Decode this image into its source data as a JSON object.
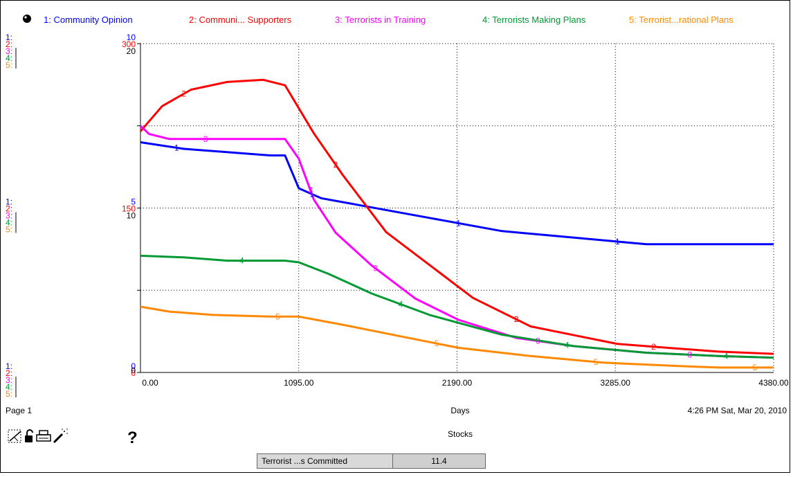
{
  "chart_data": {
    "type": "line",
    "xlabel": "Days",
    "title": "Stocks",
    "page_label": "Page 1",
    "timestamp": "4:26 PM   Sat, Mar 20, 2010",
    "x_ticks": [
      "0.00",
      "1095.00",
      "2190.00",
      "3285.00",
      "4380.00"
    ],
    "xlim": [
      0,
      4380
    ],
    "grid": "dotted",
    "legend_position": "top",
    "axes": [
      {
        "series_index": "1",
        "color": "#0000ff",
        "ticks": [
          "10",
          "5",
          "0"
        ],
        "ylim": [
          0,
          10
        ]
      },
      {
        "series_index": "2",
        "color": "#ff0000",
        "ticks": [
          "300",
          "150",
          "0"
        ],
        "ylim": [
          0,
          300
        ]
      },
      {
        "series_index": "3",
        "color": "#ff00ff",
        "ticks": [
          "",
          "",
          ""
        ]
      },
      {
        "series_index": "4",
        "color": "#009933",
        "ticks": [
          "",
          "",
          ""
        ]
      },
      {
        "series_index": "5",
        "color": "#ff8800",
        "ticks": [
          "",
          "",
          ""
        ]
      }
    ],
    "shared_left_axis": {
      "ticks": [
        "20",
        "10",
        "0"
      ],
      "ylim": [
        0,
        20
      ]
    },
    "series": [
      {
        "index": "1",
        "name": "1: Community Opinion",
        "color": "#0000ff",
        "scale_max": 10,
        "x": [
          0,
          300,
          600,
          900,
          1000,
          1095,
          1250,
          1500,
          2000,
          2500,
          3000,
          3500,
          4000,
          4380
        ],
        "y": [
          7.0,
          6.8,
          6.7,
          6.6,
          6.6,
          5.6,
          5.3,
          5.1,
          4.7,
          4.3,
          4.1,
          3.9,
          3.9,
          3.9
        ]
      },
      {
        "index": "2",
        "name": "2: Communi... Supporters",
        "color": "#ff0000",
        "scale_max": 300,
        "x": [
          0,
          150,
          350,
          600,
          850,
          1000,
          1200,
          1400,
          1700,
          2000,
          2300,
          2700,
          3000,
          3300,
          3700,
          4000,
          4380
        ],
        "y": [
          220,
          243,
          258,
          265,
          267,
          262,
          218,
          180,
          128,
          98,
          68,
          42,
          34,
          26,
          22,
          19,
          17
        ]
      },
      {
        "index": "3",
        "name": "3: Terrorists  in Training",
        "color": "#ff00ff",
        "scale_max": 20,
        "x": [
          0,
          60,
          200,
          500,
          800,
          1000,
          1095,
          1200,
          1350,
          1600,
          1900,
          2200,
          2600,
          3000,
          3500,
          4000,
          4380
        ],
        "y": [
          15.0,
          14.5,
          14.2,
          14.2,
          14.2,
          14.2,
          13.0,
          10.5,
          8.5,
          6.5,
          4.5,
          3.2,
          2.1,
          1.6,
          1.2,
          1.0,
          0.9
        ]
      },
      {
        "index": "4",
        "name": "4: Terrorists Making Plans",
        "color": "#009933",
        "scale_max": 20,
        "x": [
          0,
          300,
          600,
          900,
          1000,
          1095,
          1300,
          1600,
          2000,
          2500,
          3000,
          3500,
          4000,
          4380
        ],
        "y": [
          7.1,
          7.0,
          6.8,
          6.8,
          6.8,
          6.7,
          6.0,
          4.8,
          3.5,
          2.3,
          1.6,
          1.2,
          1.0,
          0.9
        ]
      },
      {
        "index": "5",
        "name": "5: Terrorist...rational Plans",
        "color": "#ff8800",
        "scale_max": 20,
        "x": [
          0,
          200,
          500,
          900,
          1095,
          1400,
          1800,
          2200,
          2700,
          3200,
          3700,
          4000,
          4380
        ],
        "y": [
          4.0,
          3.7,
          3.5,
          3.4,
          3.4,
          2.9,
          2.2,
          1.5,
          1.0,
          0.6,
          0.4,
          0.3,
          0.3
        ]
      }
    ]
  },
  "markers": {
    "1": [
      250,
      1185,
      2200,
      3300
    ],
    "2": [
      300,
      1350,
      2600,
      3550
    ],
    "3": [
      450,
      1175,
      1625,
      2750,
      3800
    ],
    "4": [
      700,
      1800,
      2950,
      4050
    ],
    "5": [
      950,
      2050,
      3150,
      4250
    ]
  },
  "status": {
    "label": "Terrorist ...s Committed",
    "value": "11.4"
  },
  "toolbar": {
    "help_label": "?"
  }
}
